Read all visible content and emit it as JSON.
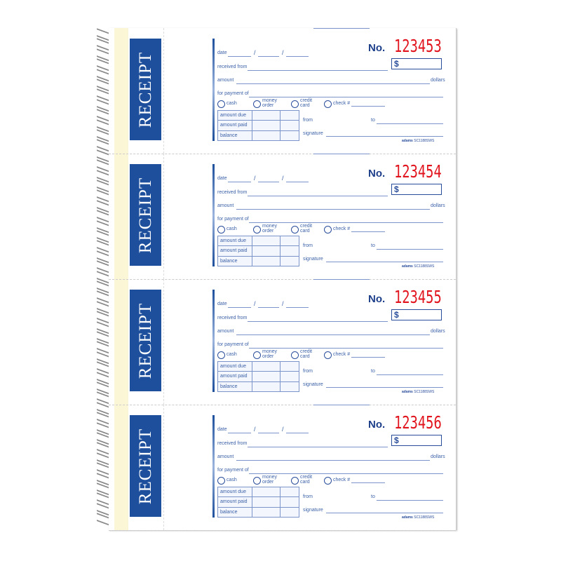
{
  "receipt_title": "RECEIPT",
  "labels": {
    "date": "date",
    "slash": "/",
    "received_from": "received from",
    "amount": "amount",
    "dollars": "dollars",
    "for_payment_of": "for payment of",
    "cash": "cash",
    "money_order": "money order",
    "credit_card": "credit card",
    "check": "check #",
    "amount_due": "amount due",
    "amount_paid": "amount paid",
    "balance": "balance",
    "from": "from",
    "to": "to",
    "signature": "signature",
    "no": "No.",
    "dollar_sign": "$",
    "brand": "adams",
    "model": "SC1188SWS"
  },
  "receipts": [
    {
      "number": "123453"
    },
    {
      "number": "123454"
    },
    {
      "number": "123455"
    },
    {
      "number": "123456"
    }
  ],
  "colors": {
    "blue": "#1d4f9c",
    "number_red": "#e1141e",
    "strip": "#fbf6d6"
  }
}
